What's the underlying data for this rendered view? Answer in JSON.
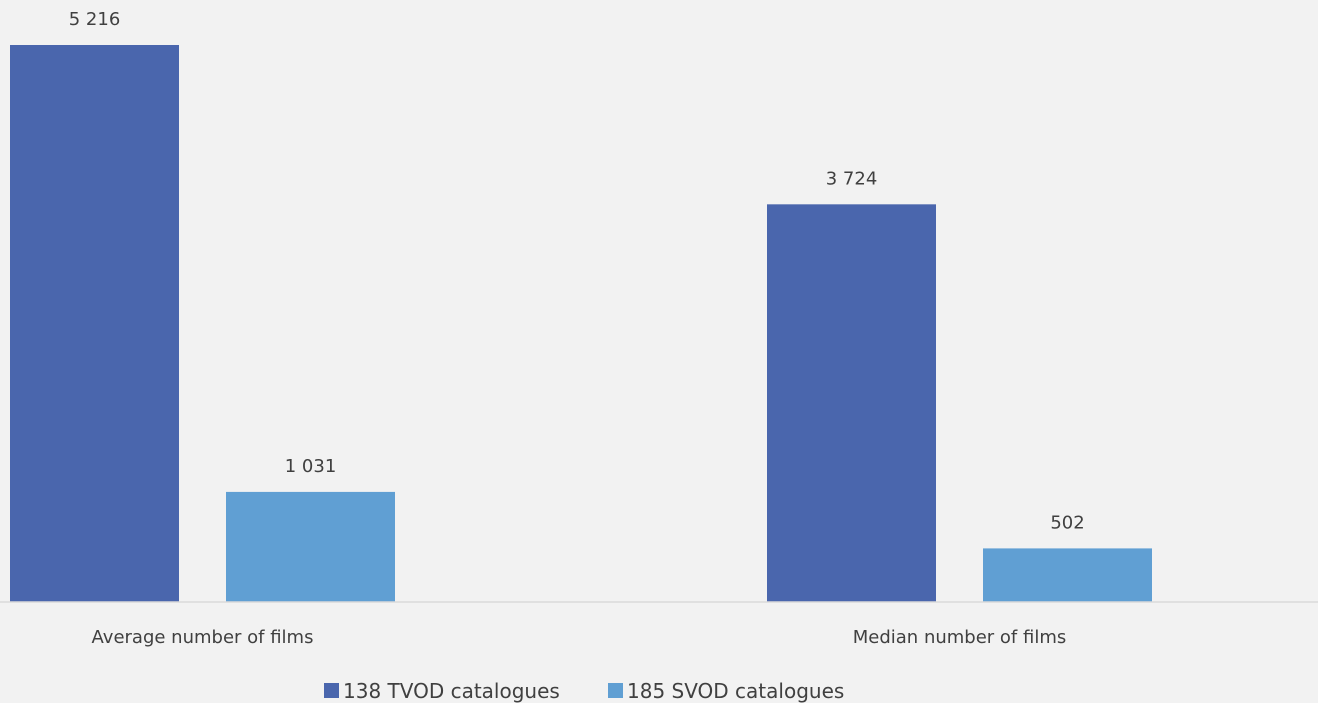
{
  "chart_data": {
    "type": "bar",
    "title": "",
    "xlabel": "",
    "ylabel": "",
    "categories": [
      "Average number of films",
      "Median number of films"
    ],
    "series": [
      {
        "name": "138 TVOD catalogues",
        "values": [
          5216,
          3724
        ],
        "value_labels": [
          "5 216",
          "3 724"
        ],
        "color": "#4a66ad"
      },
      {
        "name": "185 SVOD catalogues",
        "values": [
          1031,
          502
        ],
        "value_labels": [
          "1 031",
          "502"
        ],
        "color": "#609fd3"
      }
    ],
    "ylim": [
      0,
      5216
    ],
    "grid": false,
    "legend_position": "bottom"
  },
  "colors": {
    "background": "#f2f2f2",
    "axis": "#d9d9d9",
    "text": "#404040"
  }
}
